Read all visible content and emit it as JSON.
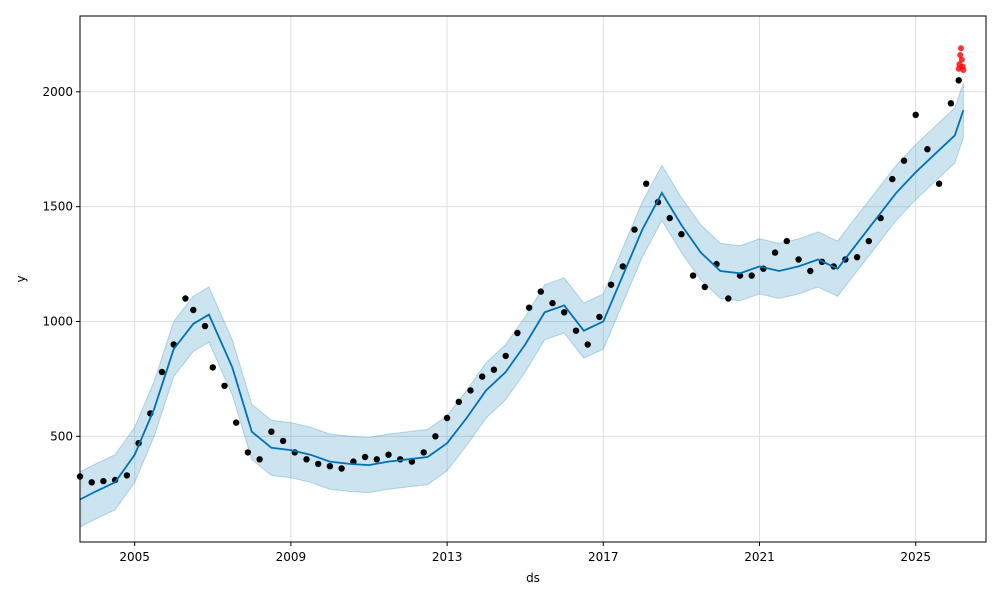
{
  "chart_data": {
    "type": "line",
    "title": "",
    "xlabel": "ds",
    "ylabel": "y",
    "xlim": [
      2003.6,
      2026.8
    ],
    "ylim": [
      40,
      2330
    ],
    "grid": true,
    "x_ticks": [
      {
        "value": 2005,
        "label": "2005"
      },
      {
        "value": 2009,
        "label": "2009"
      },
      {
        "value": 2013,
        "label": "2013"
      },
      {
        "value": 2017,
        "label": "2017"
      },
      {
        "value": 2021,
        "label": "2021"
      },
      {
        "value": 2025,
        "label": "2025"
      }
    ],
    "y_ticks": [
      {
        "value": 500,
        "label": "500"
      },
      {
        "value": 1000,
        "label": "1000"
      },
      {
        "value": 1500,
        "label": "1500"
      },
      {
        "value": 2000,
        "label": "2000"
      }
    ],
    "colors": {
      "observed": "#000000",
      "forecast_points": "#ff0000",
      "trend_line": "#0072b2",
      "uncertainty_band": "#0072b2"
    },
    "series": [
      {
        "role": "observed-points",
        "x": [
          2003.6,
          2003.9,
          2004.2,
          2004.5,
          2004.8,
          2005.1,
          2005.4,
          2005.7,
          2006.0,
          2006.3,
          2006.5,
          2006.8,
          2007.0,
          2007.3,
          2007.6,
          2007.9,
          2008.2,
          2008.5,
          2008.8,
          2009.1,
          2009.4,
          2009.7,
          2010.0,
          2010.3,
          2010.6,
          2010.9,
          2011.2,
          2011.5,
          2011.8,
          2012.1,
          2012.4,
          2012.7,
          2013.0,
          2013.3,
          2013.6,
          2013.9,
          2014.2,
          2014.5,
          2014.8,
          2015.1,
          2015.4,
          2015.7,
          2016.0,
          2016.3,
          2016.6,
          2016.9,
          2017.2,
          2017.5,
          2017.8,
          2018.1,
          2018.4,
          2018.7,
          2019.0,
          2019.3,
          2019.6,
          2019.9,
          2020.2,
          2020.5,
          2020.8,
          2021.1,
          2021.4,
          2021.7,
          2022.0,
          2022.3,
          2022.6,
          2022.9,
          2023.2,
          2023.5,
          2023.8,
          2024.1,
          2024.4,
          2024.7,
          2025.0,
          2025.3,
          2025.6,
          2025.9,
          2026.1
        ],
        "y": [
          325,
          300,
          305,
          310,
          330,
          470,
          600,
          780,
          900,
          1100,
          1050,
          980,
          800,
          720,
          560,
          430,
          400,
          520,
          480,
          430,
          400,
          380,
          370,
          360,
          390,
          410,
          400,
          420,
          400,
          390,
          430,
          500,
          580,
          650,
          700,
          760,
          790,
          850,
          950,
          1060,
          1130,
          1080,
          1040,
          960,
          900,
          1020,
          1160,
          1240,
          1400,
          1600,
          1520,
          1450,
          1380,
          1200,
          1150,
          1250,
          1100,
          1200,
          1200,
          1230,
          1300,
          1350,
          1270,
          1220,
          1260,
          1240,
          1270,
          1280,
          1350,
          1450,
          1620,
          1700,
          1900,
          1750,
          1600,
          1950,
          2050
        ]
      },
      {
        "role": "forecast-points",
        "x": [
          2026.1,
          2026.12,
          2026.14,
          2026.16,
          2026.18,
          2026.2,
          2026.22
        ],
        "y": [
          2100,
          2120,
          2160,
          2190,
          2140,
          2110,
          2095
        ]
      },
      {
        "role": "trend-line",
        "x": [
          2003.6,
          2004.0,
          2004.5,
          2005.0,
          2005.5,
          2006.0,
          2006.5,
          2006.9,
          2007.5,
          2008.0,
          2008.5,
          2009.0,
          2009.5,
          2010.0,
          2010.5,
          2011.0,
          2011.5,
          2012.0,
          2012.5,
          2013.0,
          2013.5,
          2014.0,
          2014.5,
          2015.0,
          2015.5,
          2016.0,
          2016.5,
          2017.0,
          2017.5,
          2018.0,
          2018.5,
          2019.0,
          2019.5,
          2020.0,
          2020.5,
          2021.0,
          2021.5,
          2022.0,
          2022.5,
          2023.0,
          2023.5,
          2024.0,
          2024.5,
          2025.0,
          2025.5,
          2026.0,
          2026.22
        ],
        "y": [
          225,
          260,
          300,
          420,
          620,
          880,
          990,
          1030,
          800,
          520,
          450,
          440,
          420,
          390,
          380,
          375,
          390,
          400,
          410,
          470,
          580,
          700,
          780,
          900,
          1040,
          1070,
          960,
          1000,
          1200,
          1400,
          1560,
          1420,
          1300,
          1220,
          1210,
          1240,
          1220,
          1240,
          1270,
          1230,
          1340,
          1450,
          1560,
          1650,
          1730,
          1810,
          1920
        ]
      },
      {
        "role": "uncertainty-upper",
        "x": [
          2003.6,
          2004.0,
          2004.5,
          2005.0,
          2005.5,
          2006.0,
          2006.5,
          2006.9,
          2007.5,
          2008.0,
          2008.5,
          2009.0,
          2009.5,
          2010.0,
          2010.5,
          2011.0,
          2011.5,
          2012.0,
          2012.5,
          2013.0,
          2013.5,
          2014.0,
          2014.5,
          2015.0,
          2015.5,
          2016.0,
          2016.5,
          2017.0,
          2017.5,
          2018.0,
          2018.5,
          2019.0,
          2019.5,
          2020.0,
          2020.5,
          2021.0,
          2021.5,
          2022.0,
          2022.5,
          2023.0,
          2023.5,
          2024.0,
          2024.5,
          2025.0,
          2025.5,
          2026.0,
          2026.22
        ],
        "y": [
          345,
          380,
          420,
          540,
          740,
          1000,
          1110,
          1150,
          920,
          640,
          570,
          560,
          540,
          510,
          500,
          495,
          510,
          520,
          530,
          590,
          700,
          820,
          900,
          1020,
          1160,
          1190,
          1080,
          1120,
          1320,
          1520,
          1680,
          1540,
          1420,
          1340,
          1330,
          1360,
          1340,
          1360,
          1390,
          1350,
          1460,
          1570,
          1680,
          1770,
          1850,
          1930,
          2040
        ]
      },
      {
        "role": "uncertainty-lower",
        "x": [
          2003.6,
          2004.0,
          2004.5,
          2005.0,
          2005.5,
          2006.0,
          2006.5,
          2006.9,
          2007.5,
          2008.0,
          2008.5,
          2009.0,
          2009.5,
          2010.0,
          2010.5,
          2011.0,
          2011.5,
          2012.0,
          2012.5,
          2013.0,
          2013.5,
          2014.0,
          2014.5,
          2015.0,
          2015.5,
          2016.0,
          2016.5,
          2017.0,
          2017.5,
          2018.0,
          2018.5,
          2019.0,
          2019.5,
          2020.0,
          2020.5,
          2021.0,
          2021.5,
          2022.0,
          2022.5,
          2023.0,
          2023.5,
          2024.0,
          2024.5,
          2025.0,
          2025.5,
          2026.0,
          2026.22
        ],
        "y": [
          105,
          140,
          180,
          300,
          500,
          760,
          870,
          910,
          680,
          400,
          330,
          320,
          300,
          270,
          260,
          255,
          270,
          280,
          290,
          350,
          460,
          580,
          660,
          780,
          920,
          950,
          840,
          880,
          1080,
          1280,
          1440,
          1300,
          1180,
          1100,
          1090,
          1120,
          1100,
          1120,
          1150,
          1110,
          1220,
          1330,
          1440,
          1530,
          1610,
          1690,
          1800
        ]
      }
    ]
  }
}
